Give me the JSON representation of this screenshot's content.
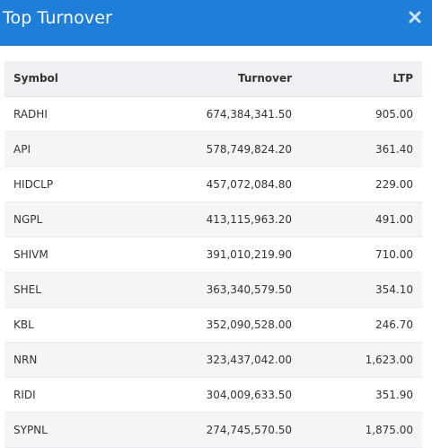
{
  "header": {
    "title": "Top Turnover",
    "close_icon": "close-icon",
    "bg_color": "#1e7ed8"
  },
  "table": {
    "columns": [
      "Symbol",
      "Turnover",
      "LTP"
    ],
    "rows": [
      {
        "symbol": "RADHI",
        "turnover": "674,384,341.50",
        "ltp": "905.00"
      },
      {
        "symbol": "API",
        "turnover": "578,749,824.20",
        "ltp": "361.40"
      },
      {
        "symbol": "HIDCLP",
        "turnover": "457,072,084.80",
        "ltp": "229.00"
      },
      {
        "symbol": "NGPL",
        "turnover": "413,115,963.20",
        "ltp": "491.00"
      },
      {
        "symbol": "SHIVM",
        "turnover": "391,010,219.90",
        "ltp": "710.00"
      },
      {
        "symbol": "SHEL",
        "turnover": "363,340,579.50",
        "ltp": "354.10"
      },
      {
        "symbol": "KBL",
        "turnover": "352,090,528.00",
        "ltp": "246.70"
      },
      {
        "symbol": "NRN",
        "turnover": "323,437,042.00",
        "ltp": "1,623.00"
      },
      {
        "symbol": "RIDI",
        "turnover": "304,009,633.50",
        "ltp": "351.90"
      },
      {
        "symbol": "SYPNL",
        "turnover": "274,745,570.50",
        "ltp": "1,875.00"
      }
    ]
  }
}
